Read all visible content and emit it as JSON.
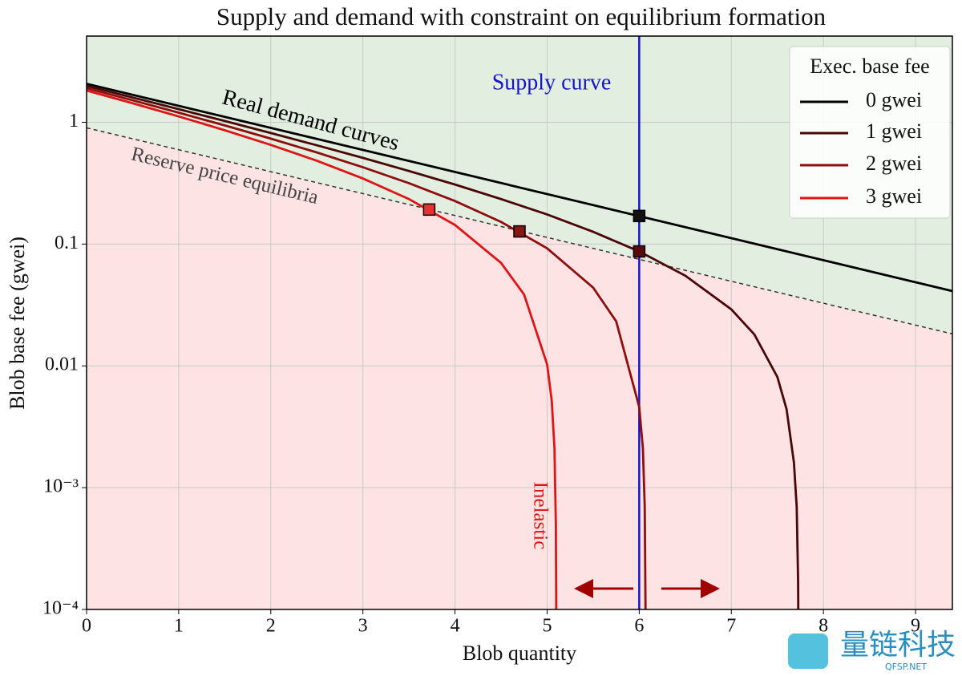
{
  "chart_data": {
    "type": "line",
    "title": "Supply and demand with constraint on equilibrium formation",
    "x_label": "Blob quantity",
    "y_label": "Blob base fee (gwei)",
    "xlim": [
      0,
      9.4
    ],
    "ylim": [
      0.0001,
      5.1
    ],
    "log_y": true,
    "grid": true,
    "xticks": [
      0,
      1,
      2,
      3,
      4,
      5,
      6,
      7,
      8,
      9
    ],
    "yticks": [
      {
        "value": 0.0001,
        "label": "10⁻⁴"
      },
      {
        "value": 0.001,
        "label": "10⁻³"
      },
      0.01,
      0.1,
      1
    ],
    "legend_title": "Exec. base fee",
    "legend_position": "upper right",
    "series": [
      {
        "name": "0 gwei",
        "color": "#000000",
        "x": [
          0,
          9.4
        ],
        "values": [
          2.07,
          0.0411
        ]
      },
      {
        "name": "1 gwei",
        "color": "#4a0606",
        "x": [
          0,
          0.5,
          1,
          1.5,
          2,
          2.5,
          3,
          3.5,
          4,
          4.5,
          5,
          5.5,
          6,
          6.5,
          7,
          7.25,
          7.5,
          7.6,
          7.68,
          7.71,
          7.725,
          7.727
        ],
        "values": [
          1.987,
          1.597,
          1.281,
          1.024,
          0.816,
          0.647,
          0.51,
          0.398,
          0.308,
          0.234,
          0.175,
          0.126,
          0.087,
          0.055,
          0.0291,
          0.0181,
          0.0081,
          0.0044,
          0.0016,
          0.00069,
          0.00017,
          0.0001
        ]
      },
      {
        "name": "2 gwei",
        "color": "#8e0e0e",
        "x": [
          0,
          0.5,
          1,
          1.5,
          2,
          2.5,
          3,
          3.5,
          4,
          4.5,
          5,
          5.5,
          5.75,
          6,
          6.04,
          6.06,
          6.0685
        ],
        "values": [
          1.905,
          1.515,
          1.199,
          0.942,
          0.734,
          0.565,
          0.4275,
          0.316,
          0.2255,
          0.152,
          0.0923,
          0.0439,
          0.0232,
          0.0046,
          0.0021,
          0.00069,
          0.0001
        ]
      },
      {
        "name": "3 gwei",
        "color": "#e01414",
        "x": [
          0,
          0.5,
          1,
          1.5,
          2,
          2.5,
          3,
          3.5,
          4,
          4.5,
          4.75,
          5,
          5.05,
          5.08,
          5.095,
          5.099
        ],
        "values": [
          1.823,
          1.433,
          1.117,
          0.86,
          0.652,
          0.483,
          0.3455,
          0.234,
          0.1435,
          0.07,
          0.0385,
          0.0103,
          0.0052,
          0.0021,
          0.0005,
          0.0001
        ]
      }
    ],
    "equilibria": {
      "x": [
        6,
        6,
        4.7,
        3.72
      ],
      "values": [
        0.17,
        0.087,
        0.127,
        0.192
      ],
      "colors": [
        "#111111",
        "#5a0a0a",
        "#8e1414",
        "#e83232"
      ]
    },
    "reserve_line": {
      "x": [
        0,
        9.4
      ],
      "values": [
        0.9,
        0.0183
      ],
      "color": "#333333"
    },
    "supply": {
      "x": 6,
      "color": "#1414cc",
      "label": "Supply curve"
    },
    "region_colors": {
      "above": "#e2efe0",
      "below": "#fde3e3"
    },
    "annotations": [
      {
        "text": "Real demand curves",
        "color": "#000000"
      },
      {
        "text": "Reserve price equilibria",
        "color": "#444444"
      },
      {
        "text": "Inelastic",
        "color": "#e01414"
      }
    ]
  },
  "watermark": {
    "title": "量链科技",
    "subtitle": "QFSP.NET"
  }
}
